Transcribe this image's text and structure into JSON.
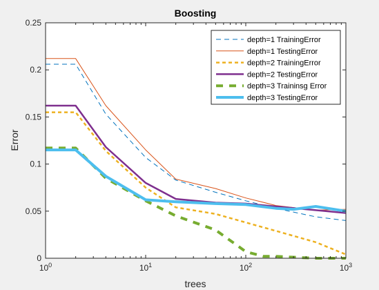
{
  "chart_data": {
    "type": "line",
    "title": "Boosting",
    "xlabel": "trees",
    "ylabel": "Error",
    "xscale": "log",
    "xlim": [
      1,
      1000
    ],
    "ylim": [
      0,
      0.25
    ],
    "xticks": [
      {
        "value": 1,
        "base": "10",
        "exp": "0"
      },
      {
        "value": 10,
        "base": "10",
        "exp": "1"
      },
      {
        "value": 100,
        "base": "10",
        "exp": "2"
      },
      {
        "value": 1000,
        "base": "10",
        "exp": "3"
      }
    ],
    "yticks": [
      {
        "value": 0,
        "label": "0"
      },
      {
        "value": 0.05,
        "label": "0.05"
      },
      {
        "value": 0.1,
        "label": "0.1"
      },
      {
        "value": 0.15,
        "label": "0.15"
      },
      {
        "value": 0.2,
        "label": "0.2"
      },
      {
        "value": 0.25,
        "label": "0.25"
      }
    ],
    "grid": false,
    "legend_position": "top-right",
    "series": [
      {
        "name": "depth=1 TrainingError",
        "color": "#0072bd",
        "style": "dashed",
        "weight": "thin",
        "x": [
          1,
          2,
          4,
          10,
          20,
          50,
          100,
          200,
          500,
          1000
        ],
        "y": [
          0.206,
          0.206,
          0.153,
          0.107,
          0.083,
          0.07,
          0.061,
          0.053,
          0.044,
          0.04
        ]
      },
      {
        "name": "depth=1 TestingError",
        "color": "#d95319",
        "style": "solid",
        "weight": "thin",
        "x": [
          1,
          2,
          4,
          10,
          20,
          50,
          100,
          200,
          500,
          1000
        ],
        "y": [
          0.212,
          0.212,
          0.162,
          0.115,
          0.084,
          0.074,
          0.064,
          0.056,
          0.051,
          0.052
        ]
      },
      {
        "name": "depth=2 TrainingError",
        "color": "#edb120",
        "style": "dashed",
        "weight": "medium",
        "x": [
          1,
          2,
          4,
          10,
          20,
          50,
          100,
          200,
          500,
          1000
        ],
        "y": [
          0.155,
          0.155,
          0.114,
          0.075,
          0.054,
          0.047,
          0.038,
          0.029,
          0.017,
          0.004
        ]
      },
      {
        "name": "depth=2 TestingError",
        "color": "#7e2f8e",
        "style": "solid",
        "weight": "medium",
        "x": [
          1,
          2,
          4,
          10,
          20,
          50,
          100,
          200,
          500,
          1000
        ],
        "y": [
          0.162,
          0.162,
          0.118,
          0.08,
          0.063,
          0.059,
          0.058,
          0.055,
          0.051,
          0.048
        ]
      },
      {
        "name": "depth=3 Traininsg Error",
        "color": "#77ac30",
        "style": "dashed",
        "weight": "thick",
        "x": [
          1,
          2,
          4,
          10,
          20,
          50,
          100,
          150,
          200,
          500,
          1000
        ],
        "y": [
          0.117,
          0.117,
          0.085,
          0.061,
          0.045,
          0.03,
          0.007,
          0.002,
          0.002,
          0.0,
          0.0
        ]
      },
      {
        "name": "depth=3 TestingError",
        "color": "#4dbeee",
        "style": "solid",
        "weight": "thick",
        "x": [
          1,
          2,
          4,
          10,
          20,
          50,
          100,
          200,
          300,
          500,
          1000
        ],
        "y": [
          0.115,
          0.115,
          0.087,
          0.062,
          0.06,
          0.058,
          0.057,
          0.053,
          0.052,
          0.055,
          0.05
        ]
      }
    ]
  }
}
